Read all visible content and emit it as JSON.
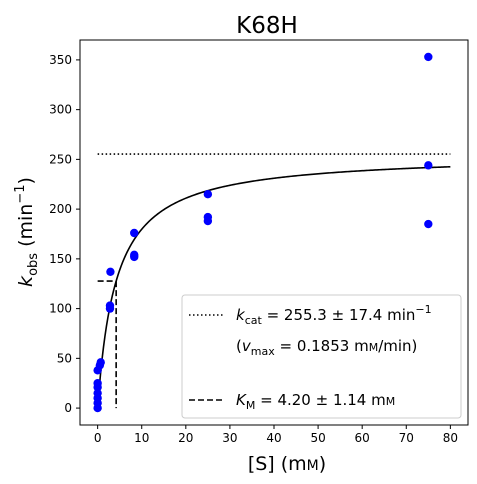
{
  "chart_data": {
    "type": "scatter",
    "title": "K68H",
    "xlabel": {
      "main": "[S] (m",
      "unit_sc": "M",
      "close": ")"
    },
    "ylabel": {
      "k": "k",
      "sub": "obs",
      "mid": " (min",
      "sup": "−1",
      "close": ")"
    },
    "xlim": [
      -4,
      84
    ],
    "ylim": [
      -17,
      370
    ],
    "xticks": [
      0,
      10,
      20,
      30,
      40,
      50,
      60,
      70,
      80
    ],
    "yticks": [
      0,
      50,
      100,
      150,
      200,
      250,
      300,
      350
    ],
    "colors": {
      "points": "#0000ff",
      "fit": "#000000"
    },
    "points": [
      {
        "x": 0,
        "y": 0
      },
      {
        "x": 0,
        "y": 5
      },
      {
        "x": 0,
        "y": 10
      },
      {
        "x": 0,
        "y": 15
      },
      {
        "x": 0,
        "y": 21
      },
      {
        "x": 0,
        "y": 25
      },
      {
        "x": 0,
        "y": 38
      },
      {
        "x": 0.5,
        "y": 43
      },
      {
        "x": 0.7,
        "y": 46
      },
      {
        "x": 2.8,
        "y": 100
      },
      {
        "x": 2.8,
        "y": 103
      },
      {
        "x": 2.9,
        "y": 137
      },
      {
        "x": 8.3,
        "y": 152
      },
      {
        "x": 8.3,
        "y": 154
      },
      {
        "x": 8.3,
        "y": 176
      },
      {
        "x": 25,
        "y": 188
      },
      {
        "x": 25,
        "y": 192
      },
      {
        "x": 25,
        "y": 215
      },
      {
        "x": 75,
        "y": 185
      },
      {
        "x": 75,
        "y": 244
      },
      {
        "x": 75,
        "y": 353
      }
    ],
    "fit": {
      "model": "michaelis-menten",
      "vmax": 255.3,
      "km": 4.2,
      "x_range": [
        0,
        80
      ]
    },
    "kcat_line": {
      "y": 255.3,
      "x_range": [
        0,
        80
      ]
    },
    "km_line": {
      "x": 4.2,
      "y": 127.65,
      "x_start": 0,
      "y_start": 0
    },
    "legend": {
      "position": "lower-right",
      "kcat": {
        "k": "k",
        "sub": "cat",
        "text": " = 255.3 ± 17.4 min",
        "sup": "−1"
      },
      "vmax": {
        "open": "(",
        "v": "v",
        "sub": "max",
        "text": " = 0.1853 m",
        "unit_sc": "M",
        "close": "/min)"
      },
      "km": {
        "k": "K",
        "sub": "M",
        "text": " = 4.20 ± 1.14 m",
        "unit_sc": "M"
      }
    }
  }
}
